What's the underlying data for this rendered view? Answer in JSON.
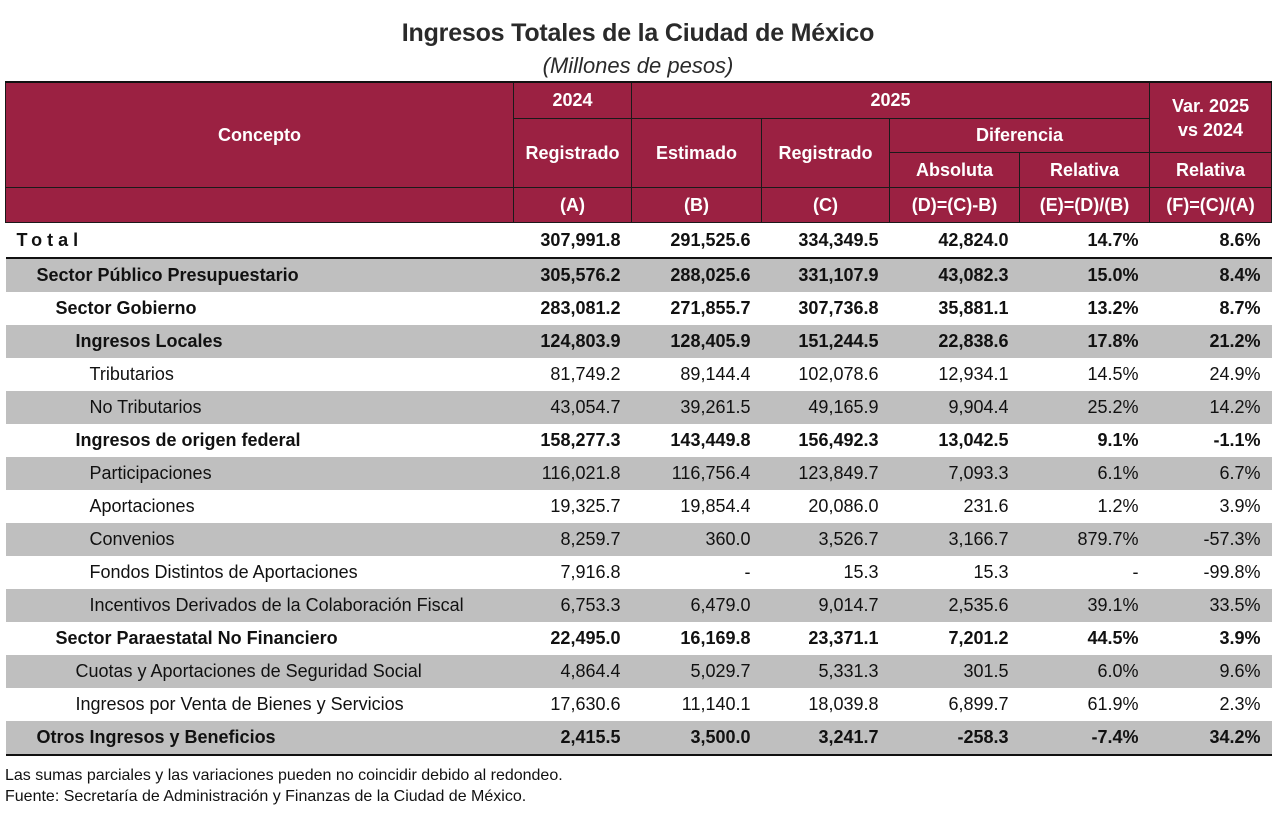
{
  "title": "Ingresos Totales de la Ciudad de México",
  "subtitle": "(Millones de pesos)",
  "header": {
    "concepto": "Concepto",
    "year_2024": "2024",
    "year_2025": "2025",
    "var_title": "Var. 2025 vs 2024",
    "registrado_2024": "Registrado",
    "estimado": "Estimado",
    "registrado_2025": "Registrado",
    "diferencia": "Diferencia",
    "absoluta": "Absoluta",
    "relativa": "Relativa",
    "var_relativa": "Relativa",
    "formula_a": "(A)",
    "formula_b": "(B)",
    "formula_c": "(C)",
    "formula_d": "(D)=(C)-B)",
    "formula_e": "(E)=(D)/(B)",
    "formula_f": "(F)=(C)/(A)"
  },
  "rows": [
    {
      "concepto": "Total",
      "a": "307,991.8",
      "b": "291,525.6",
      "c": "334,349.5",
      "d": "42,824.0",
      "e": "14.7%",
      "f": "8.6%"
    },
    {
      "concepto": "Sector Público Presupuestario",
      "a": "305,576.2",
      "b": "288,025.6",
      "c": "331,107.9",
      "d": "43,082.3",
      "e": "15.0%",
      "f": "8.4%"
    },
    {
      "concepto": "Sector Gobierno",
      "a": "283,081.2",
      "b": "271,855.7",
      "c": "307,736.8",
      "d": "35,881.1",
      "e": "13.2%",
      "f": "8.7%"
    },
    {
      "concepto": "Ingresos Locales",
      "a": "124,803.9",
      "b": "128,405.9",
      "c": "151,244.5",
      "d": "22,838.6",
      "e": "17.8%",
      "f": "21.2%"
    },
    {
      "concepto": "Tributarios",
      "a": "81,749.2",
      "b": "89,144.4",
      "c": "102,078.6",
      "d": "12,934.1",
      "e": "14.5%",
      "f": "24.9%"
    },
    {
      "concepto": "No Tributarios",
      "a": "43,054.7",
      "b": "39,261.5",
      "c": "49,165.9",
      "d": "9,904.4",
      "e": "25.2%",
      "f": "14.2%"
    },
    {
      "concepto": "Ingresos de origen federal",
      "a": "158,277.3",
      "b": "143,449.8",
      "c": "156,492.3",
      "d": "13,042.5",
      "e": "9.1%",
      "f": "-1.1%"
    },
    {
      "concepto": "Participaciones",
      "a": "116,021.8",
      "b": "116,756.4",
      "c": "123,849.7",
      "d": "7,093.3",
      "e": "6.1%",
      "f": "6.7%"
    },
    {
      "concepto": "Aportaciones",
      "a": "19,325.7",
      "b": "19,854.4",
      "c": "20,086.0",
      "d": "231.6",
      "e": "1.2%",
      "f": "3.9%"
    },
    {
      "concepto": "Convenios",
      "a": "8,259.7",
      "b": "360.0",
      "c": "3,526.7",
      "d": "3,166.7",
      "e": "879.7%",
      "f": "-57.3%"
    },
    {
      "concepto": "Fondos Distintos de Aportaciones",
      "a": "7,916.8",
      "b": "-",
      "c": "15.3",
      "d": "15.3",
      "e": "-",
      "f": "-99.8%"
    },
    {
      "concepto": "Incentivos Derivados de la Colaboración Fiscal",
      "a": "6,753.3",
      "b": "6,479.0",
      "c": "9,014.7",
      "d": "2,535.6",
      "e": "39.1%",
      "f": "33.5%"
    },
    {
      "concepto": "Sector Paraestatal No Financiero",
      "a": "22,495.0",
      "b": "16,169.8",
      "c": "23,371.1",
      "d": "7,201.2",
      "e": "44.5%",
      "f": "3.9%"
    },
    {
      "concepto": "Cuotas y Aportaciones de Seguridad Social",
      "a": "4,864.4",
      "b": "5,029.7",
      "c": "5,331.3",
      "d": "301.5",
      "e": "6.0%",
      "f": "9.6%"
    },
    {
      "concepto": "Ingresos por Venta de Bienes y Servicios",
      "a": "17,630.6",
      "b": "11,140.1",
      "c": "18,039.8",
      "d": "6,899.7",
      "e": "61.9%",
      "f": "2.3%"
    },
    {
      "concepto": "Otros Ingresos y Beneficios",
      "a": "2,415.5",
      "b": "3,500.0",
      "c": "3,241.7",
      "d": "-258.3",
      "e": "-7.4%",
      "f": "34.2%"
    }
  ],
  "notes": [
    "Las sumas parciales y las variaciones pueden no coincidir debido al redondeo.",
    "Fuente: Secretaría de Administración y Finanzas de la Ciudad de México."
  ],
  "colors": {
    "header_bg": "#9b2142",
    "header_text": "#ffffff",
    "stripe_gray": "#bfbfbf"
  }
}
